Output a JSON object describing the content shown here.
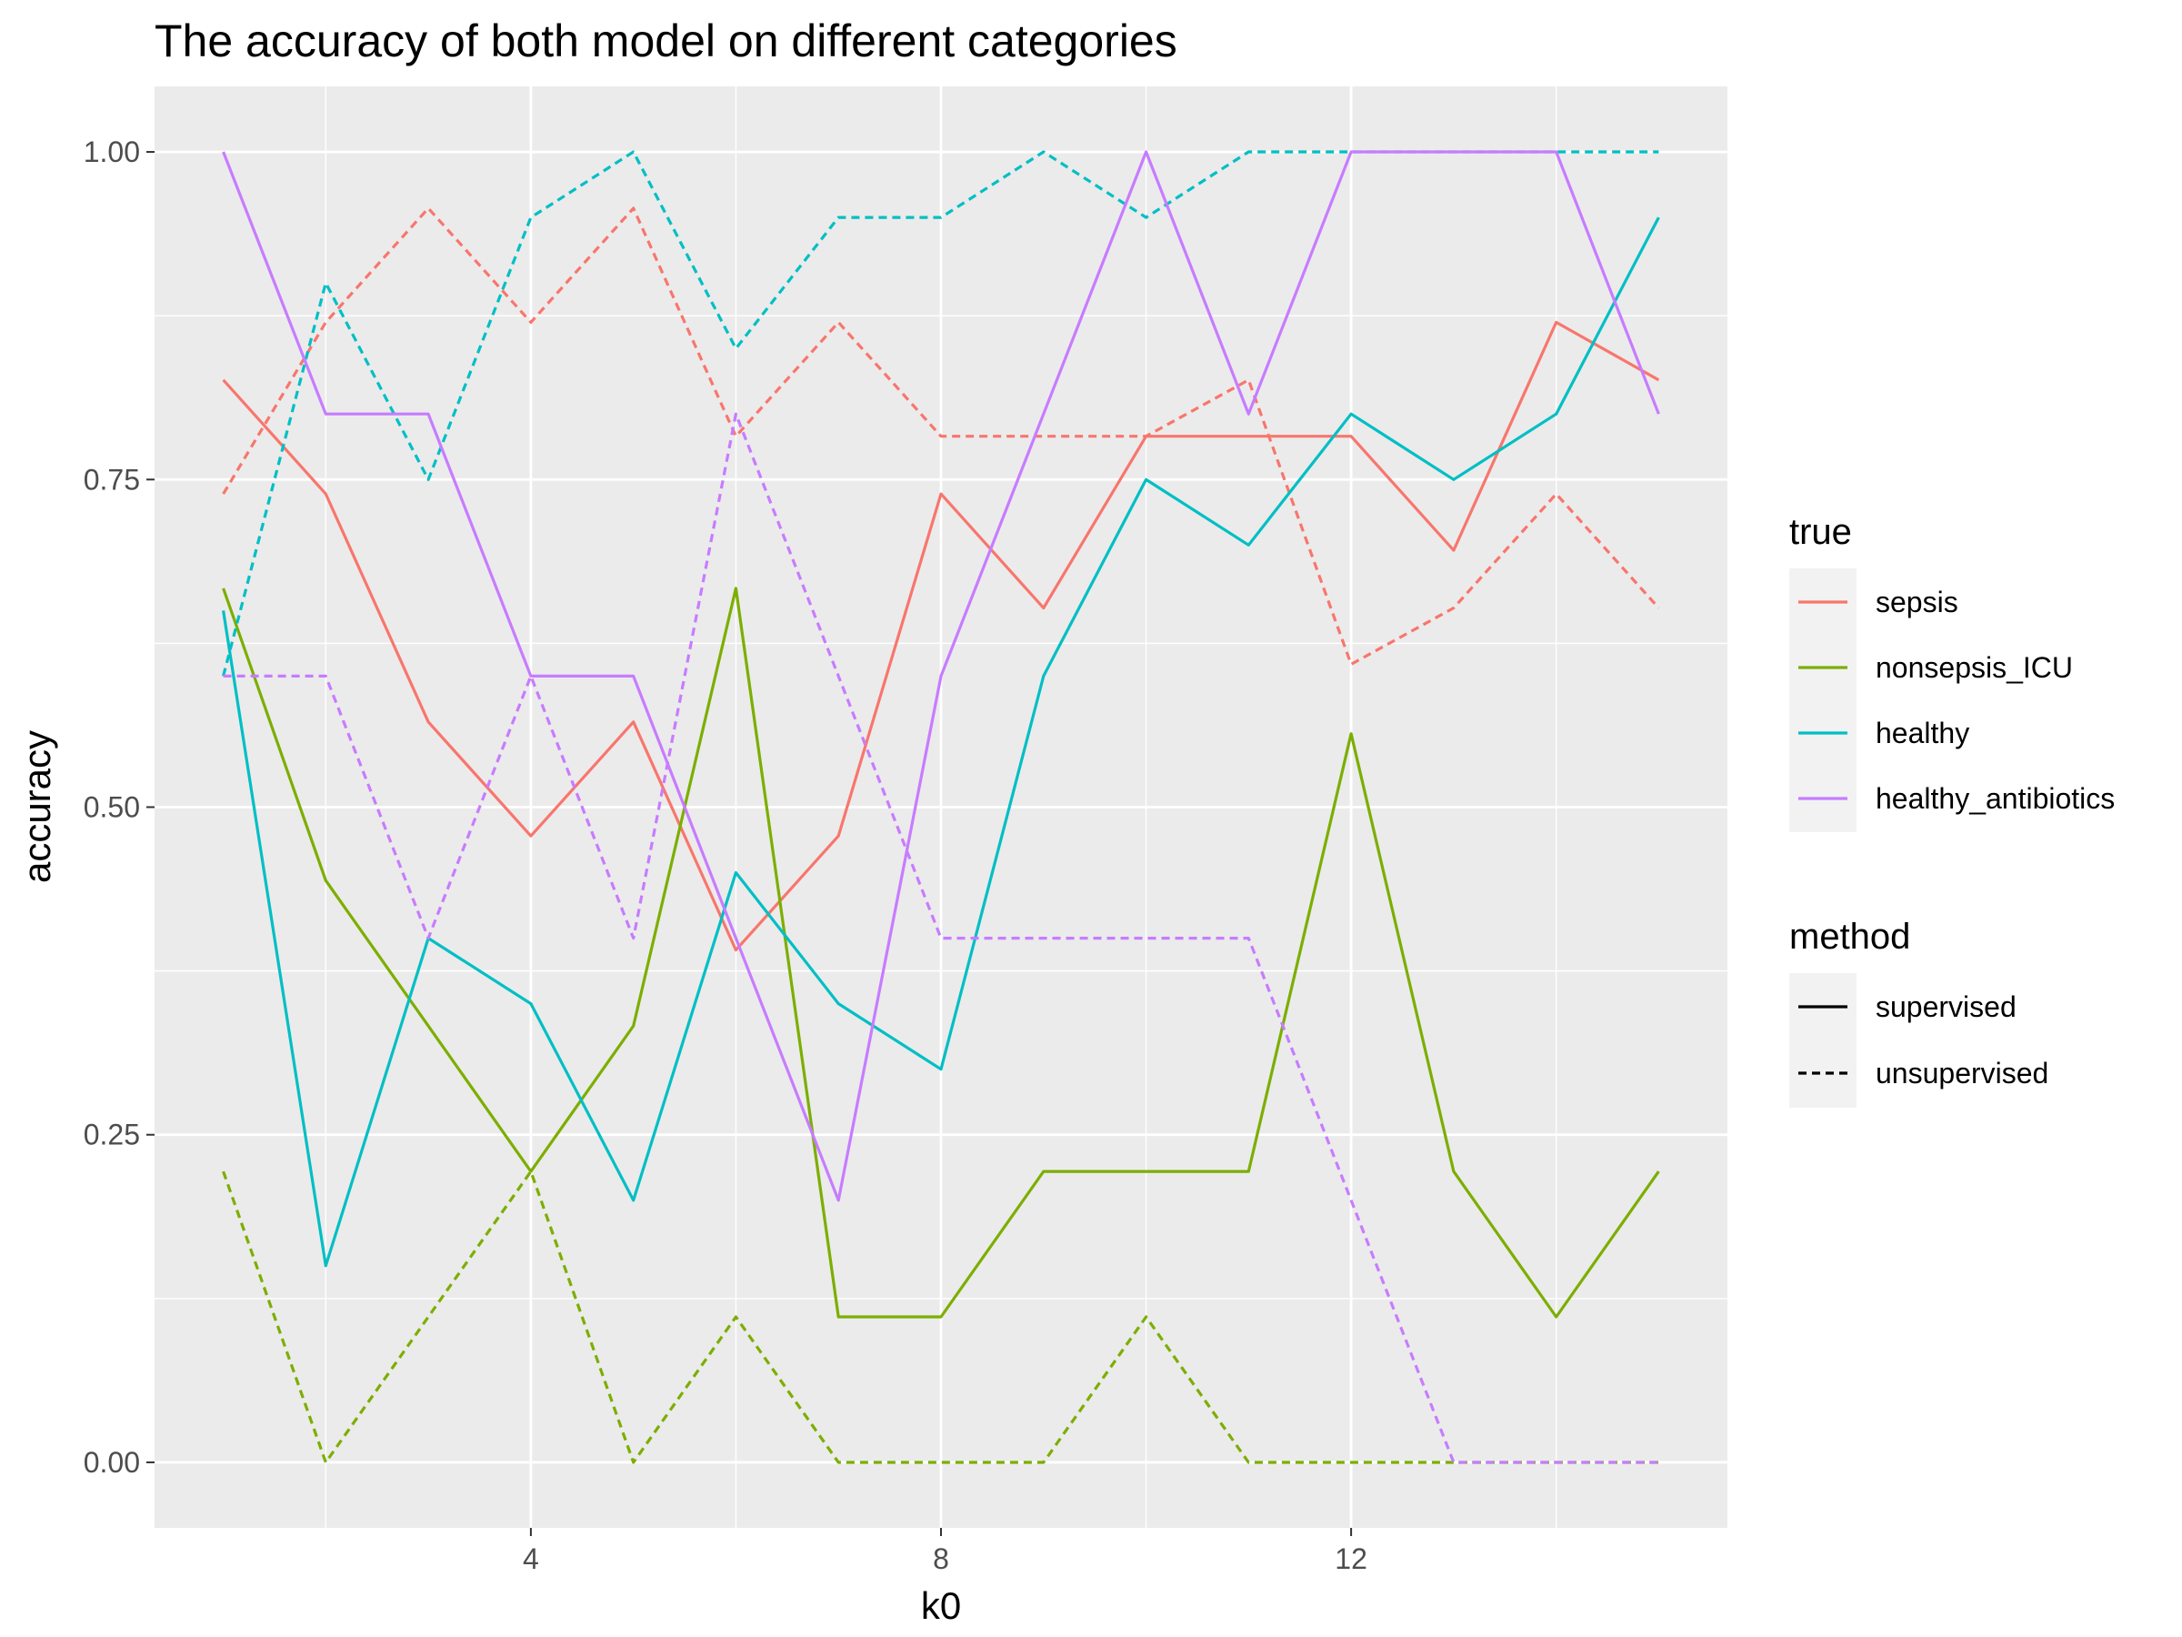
{
  "chart_data": {
    "type": "line",
    "title": "The accuracy of both model on different categories",
    "xlabel": "k0",
    "ylabel": "accuracy",
    "xlim": [
      0.33,
      15.67
    ],
    "ylim": [
      -0.05,
      1.05
    ],
    "x_ticks": [
      4,
      8,
      12
    ],
    "x_tick_labels": [
      "4",
      "8",
      "12"
    ],
    "y_ticks": [
      0,
      0.25,
      0.5,
      0.75,
      1
    ],
    "y_tick_labels": [
      "0.00",
      "0.25",
      "0.50",
      "0.75",
      "1.00"
    ],
    "grid": true,
    "legend_position": "right",
    "x": [
      1,
      2,
      3,
      4,
      5,
      6,
      7,
      8,
      9,
      10,
      11,
      12,
      13,
      14,
      15
    ],
    "colors": {
      "sepsis": "#F8766D",
      "nonsepsis_ICU": "#7CAE00",
      "healthy": "#00BFC4",
      "healthy_antibiotics": "#C77CFF"
    },
    "legends": {
      "true": {
        "title": "true",
        "entries": [
          "sepsis",
          "nonsepsis_ICU",
          "healthy",
          "healthy_antibiotics"
        ]
      },
      "method": {
        "title": "method",
        "entries": [
          "supervised",
          "unsupervised"
        ]
      }
    },
    "series": [
      {
        "true": "sepsis",
        "method": "supervised",
        "values": [
          0.826,
          0.739,
          0.565,
          0.478,
          0.565,
          0.391,
          0.478,
          0.739,
          0.652,
          0.783,
          0.783,
          0.783,
          0.696,
          0.87,
          0.826
        ]
      },
      {
        "true": "sepsis",
        "method": "unsupervised",
        "values": [
          0.739,
          0.87,
          0.957,
          0.87,
          0.957,
          0.783,
          0.87,
          0.783,
          0.783,
          0.783,
          0.826,
          0.609,
          0.652,
          0.739,
          0.652
        ]
      },
      {
        "true": "nonsepsis_ICU",
        "method": "supervised",
        "values": [
          0.667,
          0.444,
          0.333,
          0.222,
          0.333,
          0.667,
          0.111,
          0.111,
          0.222,
          0.222,
          0.222,
          0.556,
          0.222,
          0.111,
          0.222
        ]
      },
      {
        "true": "nonsepsis_ICU",
        "method": "unsupervised",
        "values": [
          0.222,
          0.0,
          0.111,
          0.222,
          0.0,
          0.111,
          0.0,
          0.0,
          0.0,
          0.111,
          0.0,
          0.0,
          0.0,
          0.0,
          0.0
        ]
      },
      {
        "true": "healthy",
        "method": "supervised",
        "values": [
          0.65,
          0.15,
          0.4,
          0.35,
          0.2,
          0.45,
          0.35,
          0.3,
          0.6,
          0.75,
          0.7,
          0.8,
          0.75,
          0.8,
          0.95
        ]
      },
      {
        "true": "healthy",
        "method": "unsupervised",
        "values": [
          0.6,
          0.9,
          0.75,
          0.95,
          1.0,
          0.85,
          0.95,
          0.95,
          1.0,
          0.95,
          1.0,
          1.0,
          1.0,
          1.0,
          1.0
        ]
      },
      {
        "true": "healthy_antibiotics",
        "method": "supervised",
        "values": [
          1.0,
          0.8,
          0.8,
          0.6,
          0.6,
          0.4,
          0.2,
          0.6,
          0.8,
          1.0,
          0.8,
          1.0,
          1.0,
          1.0,
          0.8
        ]
      },
      {
        "true": "healthy_antibiotics",
        "method": "unsupervised",
        "values": [
          0.6,
          0.6,
          0.4,
          0.6,
          0.4,
          0.8,
          0.6,
          0.4,
          0.4,
          0.4,
          0.4,
          0.2,
          0.0,
          0.0,
          0.0
        ]
      }
    ]
  }
}
